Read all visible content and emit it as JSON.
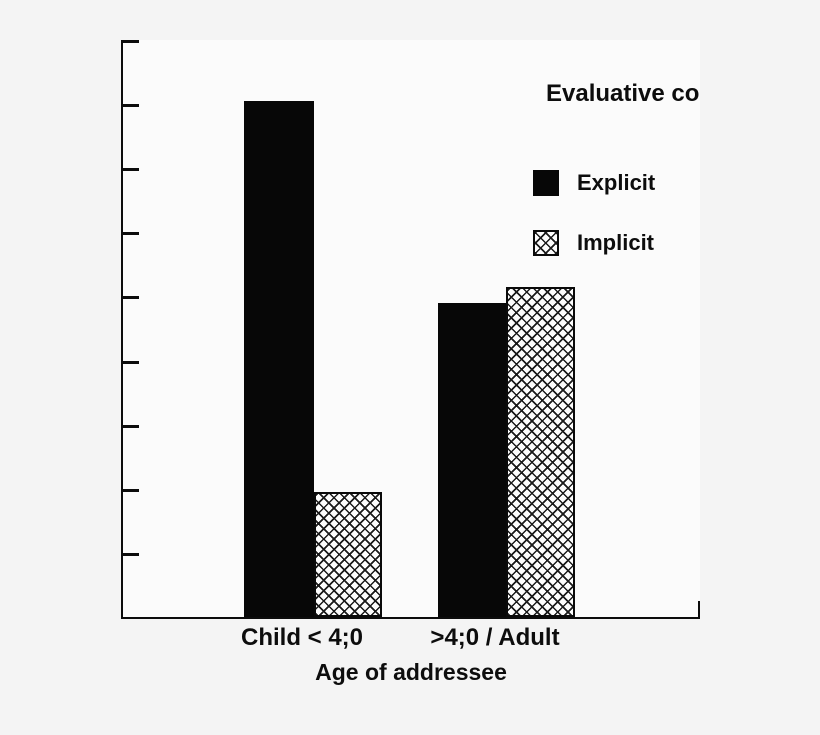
{
  "chart_title": "Evaluative co",
  "legend": {
    "items": [
      {
        "label": "Explicit",
        "swatch": "solid-black-square"
      },
      {
        "label": "Implicit",
        "swatch": "crosshatch-square"
      }
    ]
  },
  "x_axis": {
    "title": "Age of addressee",
    "categories": [
      "Child < 4;0",
      ">4;0 / Adult"
    ]
  },
  "y_axis": {
    "tick_count": 9,
    "tick_labels": []
  },
  "colors": {
    "bar_solid": "#070707",
    "axis": "#0c0c0c",
    "page_background": "#f4f4f4",
    "plot_background": "#fbfbfb",
    "text": "#0d0d0d"
  },
  "chart_data": {
    "type": "bar",
    "title": "Evaluative co",
    "xlabel": "Age of addressee",
    "ylabel": "",
    "categories": [
      "Child < 4;0",
      ">4;0 / Adult"
    ],
    "series": [
      {
        "name": "Explicit",
        "style": "solid-black",
        "values": [
          8.05,
          4.9
        ]
      },
      {
        "name": "Implicit",
        "style": "crosshatch",
        "values": [
          1.95,
          5.15
        ]
      }
    ],
    "ylim": [
      0,
      9
    ],
    "y_tick_count": 9,
    "grid": false,
    "legend_position": "upper-right",
    "note": "Y-axis ticks are unlabeled; bar values estimated in tick units (1 tick interval = 1 unit)."
  }
}
